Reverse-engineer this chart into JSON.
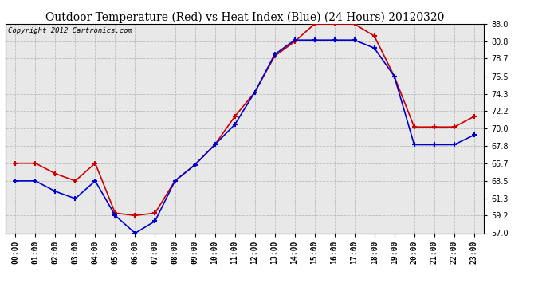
{
  "title": "Outdoor Temperature (Red) vs Heat Index (Blue) (24 Hours) 20120320",
  "copyright": "Copyright 2012 Cartronics.com",
  "x_labels": [
    "00:00",
    "01:00",
    "02:00",
    "03:00",
    "04:00",
    "05:00",
    "06:00",
    "07:00",
    "08:00",
    "09:00",
    "10:00",
    "11:00",
    "12:00",
    "13:00",
    "14:00",
    "15:00",
    "16:00",
    "17:00",
    "18:00",
    "19:00",
    "20:00",
    "21:00",
    "22:00",
    "23:00"
  ],
  "temp_red": [
    65.7,
    65.7,
    64.4,
    63.5,
    65.7,
    59.5,
    59.2,
    59.5,
    63.5,
    65.5,
    68.0,
    71.5,
    74.5,
    79.0,
    80.8,
    83.0,
    83.0,
    83.0,
    81.5,
    76.5,
    70.2,
    70.2,
    70.2,
    71.5
  ],
  "heat_blue": [
    63.5,
    63.5,
    62.2,
    61.3,
    63.5,
    59.2,
    57.0,
    58.5,
    63.5,
    65.5,
    68.0,
    70.5,
    74.5,
    79.2,
    81.0,
    81.0,
    81.0,
    81.0,
    80.0,
    76.5,
    68.0,
    68.0,
    68.0,
    69.2
  ],
  "ylim": [
    57.0,
    83.0
  ],
  "yticks": [
    57.0,
    59.2,
    61.3,
    63.5,
    65.7,
    67.8,
    70.0,
    72.2,
    74.3,
    76.5,
    78.7,
    80.8,
    83.0
  ],
  "bg_color": "#ffffff",
  "plot_bg_color": "#e8e8e8",
  "grid_color": "#bbbbbb",
  "red_color": "#cc0000",
  "blue_color": "#0000cc",
  "title_fontsize": 10,
  "copyright_fontsize": 6.5,
  "tick_fontsize": 7
}
